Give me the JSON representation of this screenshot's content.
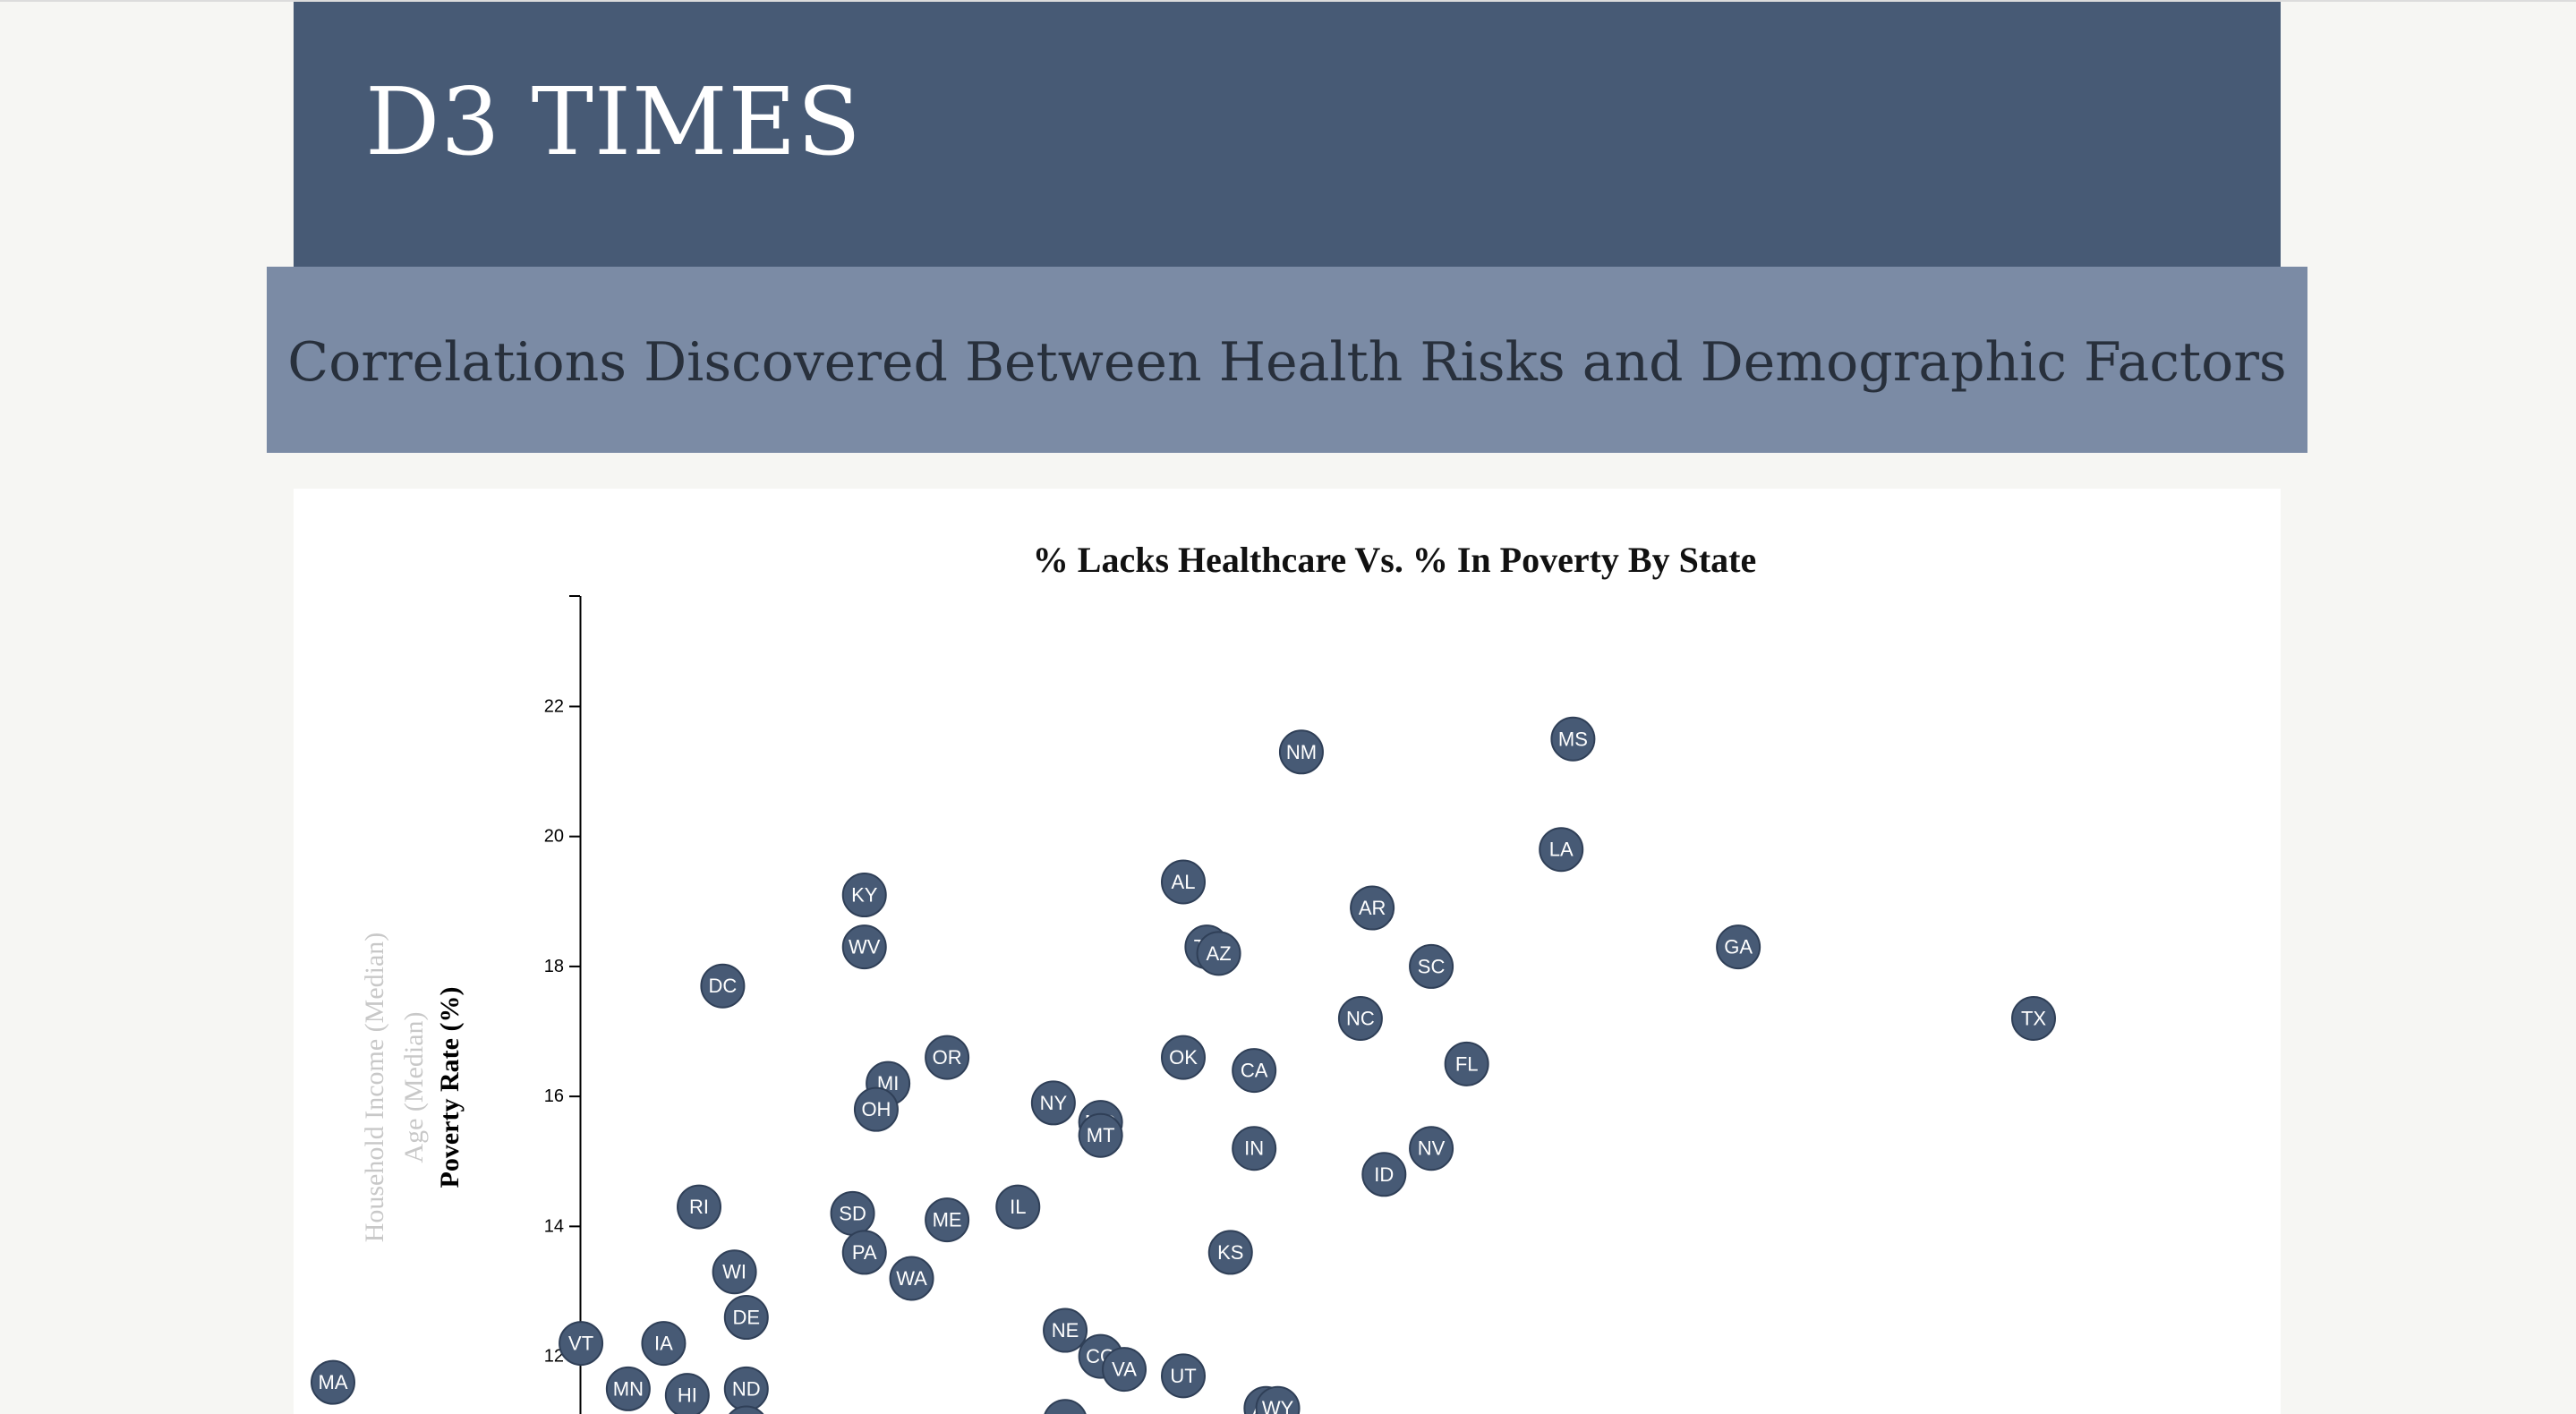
{
  "masthead": {
    "title": "D3 TIMES"
  },
  "subhead": {
    "title": "Correlations Discovered Between Health Risks and Demographic Factors"
  },
  "colors": {
    "masthead_bg": "#475a75",
    "subhead_bg": "#7b8ba5",
    "marker_fill": "#475a75",
    "marker_stroke": "#2f3f57",
    "inactive_label": "#c8c8c8"
  },
  "chart_data": {
    "type": "scatter",
    "title": "% Lacks Healthcare Vs. % In Poverty By State",
    "y_axis_labels": [
      {
        "text": "Household Income (Median)",
        "active": false
      },
      {
        "text": "Age (Median)",
        "active": false
      },
      {
        "text": "Poverty Rate (%)",
        "active": true
      }
    ],
    "ylabel": "Poverty Rate (%)",
    "ylim": [
      10.7,
      23.7
    ],
    "yticks": [
      12,
      14,
      16,
      18,
      20,
      22
    ],
    "xlabel": "",
    "grid": false,
    "x_unit": "% Lacks Healthcare",
    "points": [
      {
        "label": "MA",
        "x": 2.8,
        "y": 11.6
      },
      {
        "label": "VT",
        "x": 4.9,
        "y": 12.2
      },
      {
        "label": "IA",
        "x": 5.6,
        "y": 12.2
      },
      {
        "label": "MN",
        "x": 5.3,
        "y": 11.5
      },
      {
        "label": "HI",
        "x": 5.8,
        "y": 11.4
      },
      {
        "label": "ND",
        "x": 6.3,
        "y": 11.5
      },
      {
        "label": "CT",
        "x": 6.3,
        "y": 10.9
      },
      {
        "label": "DE",
        "x": 6.3,
        "y": 12.6
      },
      {
        "label": "WI",
        "x": 6.2,
        "y": 13.3
      },
      {
        "label": "RI",
        "x": 5.9,
        "y": 14.3
      },
      {
        "label": "DC",
        "x": 6.1,
        "y": 17.7
      },
      {
        "label": "SD",
        "x": 7.2,
        "y": 14.2
      },
      {
        "label": "PA",
        "x": 7.3,
        "y": 13.6
      },
      {
        "label": "WA",
        "x": 7.7,
        "y": 13.2
      },
      {
        "label": "ME",
        "x": 8.0,
        "y": 14.1
      },
      {
        "label": "KY",
        "x": 7.3,
        "y": 19.1
      },
      {
        "label": "WV",
        "x": 7.3,
        "y": 18.3
      },
      {
        "label": "MI",
        "x": 7.5,
        "y": 16.2
      },
      {
        "label": "OH",
        "x": 7.4,
        "y": 15.8
      },
      {
        "label": "OR",
        "x": 8.0,
        "y": 16.6
      },
      {
        "label": "IL",
        "x": 8.6,
        "y": 14.3
      },
      {
        "label": "NY",
        "x": 8.9,
        "y": 15.9
      },
      {
        "label": "MO",
        "x": 9.3,
        "y": 15.6
      },
      {
        "label": "MT",
        "x": 9.3,
        "y": 15.4
      },
      {
        "label": "NE",
        "x": 9.0,
        "y": 12.4
      },
      {
        "label": "CO",
        "x": 9.3,
        "y": 12.0
      },
      {
        "label": "VA",
        "x": 9.5,
        "y": 11.8
      },
      {
        "label": "NJ",
        "x": 9.0,
        "y": 11.0
      },
      {
        "label": "UT",
        "x": 10.0,
        "y": 11.7
      },
      {
        "label": "AL",
        "x": 10.0,
        "y": 19.3
      },
      {
        "label": "TN",
        "x": 10.2,
        "y": 18.3
      },
      {
        "label": "AZ",
        "x": 10.3,
        "y": 18.2
      },
      {
        "label": "OK",
        "x": 10.0,
        "y": 16.6
      },
      {
        "label": "CA",
        "x": 10.6,
        "y": 16.4
      },
      {
        "label": "IN",
        "x": 10.6,
        "y": 15.2
      },
      {
        "label": "KS",
        "x": 10.4,
        "y": 13.6
      },
      {
        "label": "AK",
        "x": 10.7,
        "y": 11.2
      },
      {
        "label": "WY",
        "x": 10.8,
        "y": 11.2
      },
      {
        "label": "NM",
        "x": 11.0,
        "y": 21.3
      },
      {
        "label": "AR",
        "x": 11.6,
        "y": 18.9
      },
      {
        "label": "NC",
        "x": 11.5,
        "y": 17.2
      },
      {
        "label": "SC",
        "x": 12.1,
        "y": 18.0
      },
      {
        "label": "FL",
        "x": 12.4,
        "y": 16.5
      },
      {
        "label": "NV",
        "x": 12.1,
        "y": 15.2
      },
      {
        "label": "ID",
        "x": 11.7,
        "y": 14.8
      },
      {
        "label": "LA",
        "x": 13.2,
        "y": 19.8
      },
      {
        "label": "MS",
        "x": 13.3,
        "y": 21.5
      },
      {
        "label": "GA",
        "x": 14.7,
        "y": 18.3
      },
      {
        "label": "TX",
        "x": 17.2,
        "y": 17.2
      }
    ]
  }
}
